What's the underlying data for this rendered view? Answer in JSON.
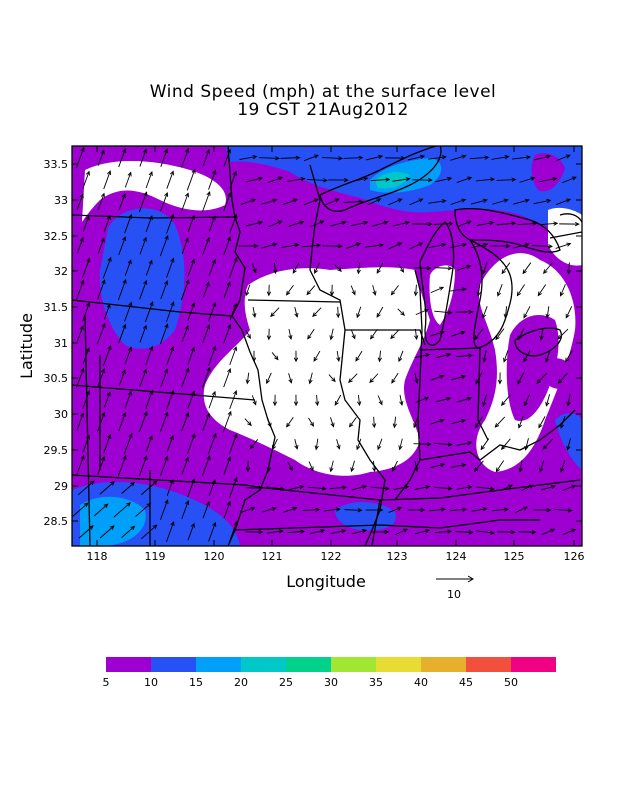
{
  "title_line1": "Wind Speed (mph) at the surface level",
  "title_line2": "19 CST 21Aug2012",
  "xlabel": "Longitude",
  "ylabel": "Latitude",
  "x_ticks": [
    "118",
    "119",
    "120",
    "121",
    "122",
    "123",
    "124",
    "125",
    "126"
  ],
  "y_ticks": [
    "33.5",
    "33",
    "32.5",
    "32",
    "31.5",
    "31",
    "30.5",
    "30",
    "29.5",
    "29",
    "28.5"
  ],
  "vector_key_label": "10",
  "colorbar": {
    "colors": [
      "#9e00d2",
      "#2750f5",
      "#00a0fa",
      "#00c8c8",
      "#00d28c",
      "#a0e632",
      "#e6dc32",
      "#e6af2d",
      "#f0503c",
      "#f00082"
    ],
    "labels": [
      "5",
      "10",
      "15",
      "20",
      "25",
      "30",
      "35",
      "40",
      "45",
      "50"
    ]
  },
  "chart_data": {
    "type": "map",
    "title": "Wind Speed (mph) at the surface level\n19 CST 21Aug2012",
    "xlabel": "Longitude",
    "ylabel": "Latitude",
    "xlim": [
      117.65,
      126.05
    ],
    "ylim": [
      28.2,
      33.8
    ],
    "legend_placement": "bottom colorbar",
    "field_colors_shown": [
      "#ffffff",
      "#9e00d2",
      "#2750f5",
      "#00a0fa",
      "#00c8c8"
    ]
  }
}
